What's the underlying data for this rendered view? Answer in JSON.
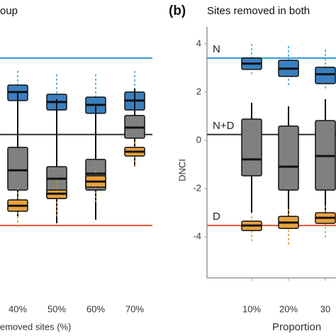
{
  "chart_data": [
    {
      "type": "box",
      "title": "oup",
      "xlabel": "emoved sites (%)",
      "categories": [
        "40%",
        "50%",
        "60%",
        "70%"
      ],
      "ylim": [
        -5.7,
        4.7
      ],
      "hlines": [
        {
          "value": 3.41,
          "color": "#2b9bd6"
        },
        {
          "value": 0.24,
          "color": "#333333"
        },
        {
          "value": -3.53,
          "color": "#e0552b"
        }
      ],
      "series": [
        {
          "color": "#3b7fc0",
          "whisker": "#2b9bd6",
          "values": [
            [
              1.12,
              1.65,
              2.0,
              2.29,
              2.88
            ],
            [
              0.97,
              1.26,
              1.59,
              1.91,
              2.74
            ],
            [
              0.88,
              1.12,
              1.47,
              1.79,
              2.74
            ],
            [
              0.97,
              1.26,
              1.65,
              2.0,
              2.88
            ]
          ]
        },
        {
          "color": "#808080",
          "whisker": "#111111",
          "values": [
            [
              -3.15,
              -2.06,
              -1.24,
              -0.29,
              2.0
            ],
            [
              -3.44,
              -2.41,
              -1.59,
              -1.09,
              1.71
            ],
            [
              -3.29,
              -2.06,
              -1.38,
              -0.79,
              1.41
            ],
            [
              -1.09,
              0.09,
              0.53,
              1.03,
              2.15
            ]
          ]
        },
        {
          "color": "#e8a23e",
          "whisker": "#d98a1c",
          "values": [
            [
              -3.59,
              -2.94,
              -2.71,
              -2.47,
              -1.97
            ],
            [
              -3.15,
              -2.41,
              -2.21,
              -2.06,
              -1.68
            ],
            [
              -2.56,
              -1.94,
              -1.71,
              -1.47,
              -1.09
            ],
            [
              -1.09,
              -0.65,
              -0.47,
              -0.29,
              -0.06
            ]
          ]
        }
      ]
    },
    {
      "type": "box",
      "panel": "(b)",
      "title": "Sites removed in both",
      "xlabel": "Proportion",
      "ylabel": "DNCI",
      "categories": [
        "10%",
        "20%",
        "30"
      ],
      "ylim": [
        -5.7,
        4.7
      ],
      "yticks": [
        -4,
        -2,
        0,
        2,
        4
      ],
      "hlines": [
        {
          "value": 3.41,
          "color": "#2b9bd6",
          "label": "N"
        },
        {
          "value": 0.24,
          "color": "#333333",
          "label": "N+D"
        },
        {
          "value": -3.53,
          "color": "#e0552b",
          "label": "D"
        }
      ],
      "series": [
        {
          "color": "#3b7fc0",
          "whisker": "#2b9bd6",
          "values": [
            [
              2.74,
              2.94,
              3.18,
              3.41,
              4.0
            ],
            [
              2.29,
              2.65,
              2.97,
              3.32,
              3.91
            ],
            [
              2.15,
              2.35,
              2.74,
              3.03,
              3.76
            ]
          ]
        },
        {
          "color": "#808080",
          "whisker": "#111111",
          "values": [
            [
              -3.0,
              -1.47,
              -0.79,
              0.88,
              1.56
            ],
            [
              -3.24,
              -2.06,
              -1.09,
              0.59,
              1.41
            ],
            [
              -3.0,
              -2.06,
              -0.65,
              0.82,
              1.71
            ]
          ]
        },
        {
          "color": "#e8a23e",
          "whisker": "#d98a1c",
          "values": [
            [
              -4.18,
              -3.74,
              -3.53,
              -3.35,
              -3.15
            ],
            [
              -4.32,
              -3.65,
              -3.41,
              -3.15,
              -2.85
            ],
            [
              -4.03,
              -3.44,
              -3.21,
              -3.0,
              -2.71
            ]
          ]
        }
      ]
    }
  ]
}
